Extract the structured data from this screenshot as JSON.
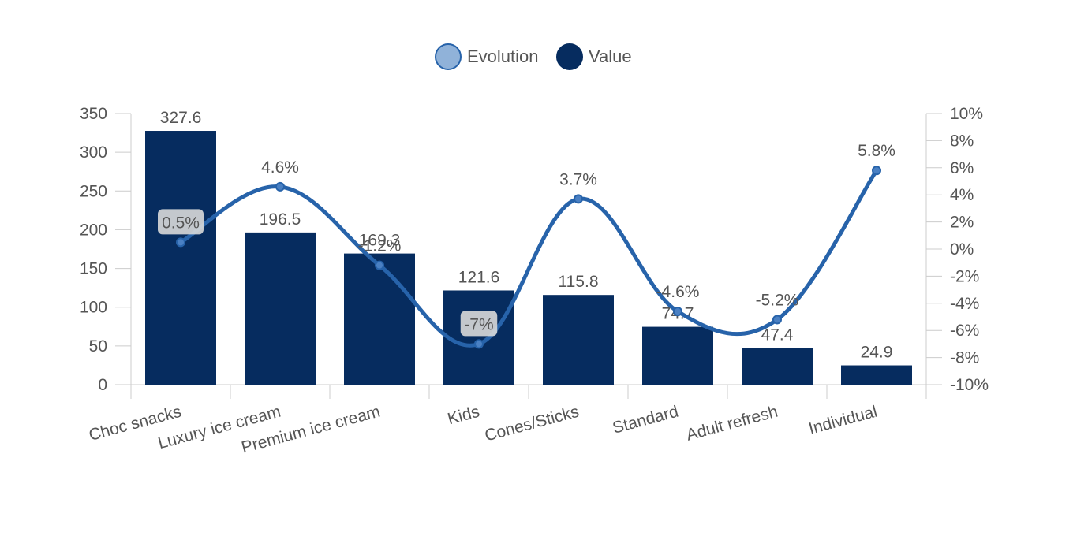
{
  "colors": {
    "bar": "#062c5f",
    "line": "#2763aa",
    "line_marker_fill": "#4a80c3",
    "legend_evolution_fill": "#90b2d9",
    "legend_evolution_stroke": "#2763aa",
    "axis": "#cccccc",
    "text": "#555555",
    "label_bg": "#d9d9d9"
  },
  "legend": [
    {
      "name": "Evolution",
      "icon": "circle-light-blue"
    },
    {
      "name": "Value",
      "icon": "circle-navy"
    }
  ],
  "chart_data": {
    "type": "bar+line",
    "categories": [
      "Choc snacks",
      "Luxury ice cream",
      "Premium ice cream",
      "Kids",
      "Cones/Sticks",
      "Standard",
      "Adult refresh",
      "Individual"
    ],
    "series": [
      {
        "name": "Value",
        "type": "bar",
        "axis": "left",
        "values": [
          327.6,
          196.5,
          169.3,
          121.6,
          115.8,
          74.7,
          47.4,
          24.9
        ],
        "labels": [
          "327.6",
          "196.5",
          "169.3",
          "121.6",
          "115.8",
          "74.7",
          "47.4",
          "24.9"
        ]
      },
      {
        "name": "Evolution",
        "type": "line",
        "smooth": true,
        "axis": "right",
        "values": [
          0.5,
          4.6,
          -1.2,
          -7,
          3.7,
          -4.6,
          -5.2,
          5.8
        ],
        "labels": [
          "0.5%",
          "4.6%",
          "-1.2%",
          "-7%",
          "3.7%",
          "-4.6%",
          "-5.2%",
          "5.8%"
        ]
      }
    ],
    "y_left": {
      "range": [
        0,
        350
      ],
      "ticks": [
        0,
        50,
        100,
        150,
        200,
        250,
        300,
        350
      ],
      "tick_labels": [
        "0",
        "50",
        "100",
        "150",
        "200",
        "250",
        "300",
        "350"
      ]
    },
    "y_right": {
      "range": [
        -10,
        10
      ],
      "ticks": [
        -10,
        -8,
        -6,
        -4,
        -2,
        0,
        2,
        4,
        6,
        8,
        10
      ],
      "tick_labels": [
        "-10%",
        "-8%",
        "-6%",
        "-4%",
        "-2%",
        "0%",
        "2%",
        "4%",
        "6%",
        "8%",
        "10%"
      ]
    },
    "grid": false,
    "legend_position": "top-center"
  }
}
